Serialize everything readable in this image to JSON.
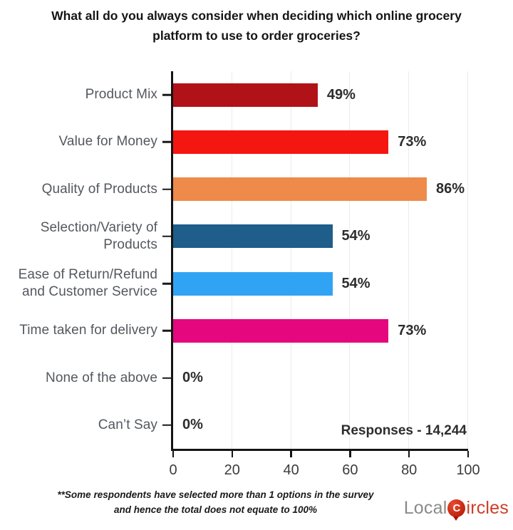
{
  "title": "What all do you always consider when deciding which online grocery platform to use to order groceries?",
  "chart_data": {
    "type": "bar",
    "orientation": "horizontal",
    "title": "What all do you always consider when deciding which online grocery platform to use to order groceries?",
    "categories": [
      "Product Mix",
      "Value for Money",
      "Quality of Products",
      "Selection/Variety of Products",
      "Ease of Return/Refund and Customer Service",
      "Time taken for delivery",
      "None of the above",
      "Can’t Say"
    ],
    "values": [
      49,
      73,
      86,
      54,
      54,
      73,
      0,
      0
    ],
    "value_labels": [
      "49%",
      "73%",
      "86%",
      "54%",
      "54%",
      "73%",
      "0%",
      "0%"
    ],
    "bar_colors": [
      "#b11217",
      "#f51511",
      "#ee8a4a",
      "#1f5d8b",
      "#31a3f5",
      "#e5077e",
      null,
      null
    ],
    "xlim": [
      0,
      100
    ],
    "x_ticks": [
      0,
      20,
      40,
      60,
      80,
      100
    ],
    "grid": "vertical-light-gray",
    "legend": "none",
    "annotation": "Responses - 14,244"
  },
  "footnote": {
    "line1": "**Some respondents have selected more than 1 options in the survey",
    "line2": "and hence the total does not equate to 100%"
  },
  "logo": {
    "prefix": "Local",
    "icon_letter": "C",
    "suffix": "ircles",
    "prefix_color": "#8a8a8a",
    "suffix_color": "#ce3d28",
    "icon_color": "#c22312"
  }
}
